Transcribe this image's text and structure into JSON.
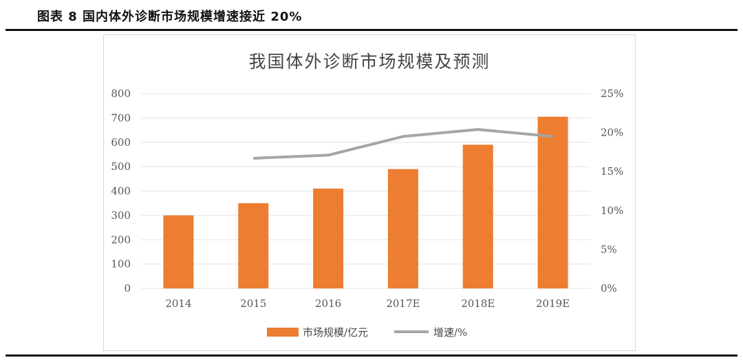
{
  "caption": "图表 8 国内体外诊断市场规模增速接近 20%",
  "colors": {
    "bar": "#ED7D31",
    "line": "#A5A5A5",
    "grid": "#e3e3e3"
  },
  "chart_data": {
    "type": "bar",
    "title": "我国体外诊断市场规模及预测",
    "categories": [
      "2014",
      "2015",
      "2016",
      "2017E",
      "2018E",
      "2019E"
    ],
    "series": [
      {
        "name": "市场规模/亿元",
        "type": "bar",
        "axis": "left",
        "values": [
          300,
          350,
          410,
          490,
          590,
          705
        ]
      },
      {
        "name": "增速/%",
        "type": "line",
        "axis": "right",
        "values": [
          null,
          16.7,
          17.1,
          19.5,
          20.4,
          19.5
        ]
      }
    ],
    "y_left": {
      "min": 0,
      "max": 800,
      "ticks": [
        "0",
        "100",
        "200",
        "300",
        "400",
        "500",
        "600",
        "700",
        "800"
      ]
    },
    "y_right": {
      "min": 0,
      "max": 25,
      "ticks": [
        "0%",
        "5%",
        "10%",
        "15%",
        "20%",
        "25%"
      ]
    },
    "grid": true,
    "legend_position": "bottom"
  }
}
